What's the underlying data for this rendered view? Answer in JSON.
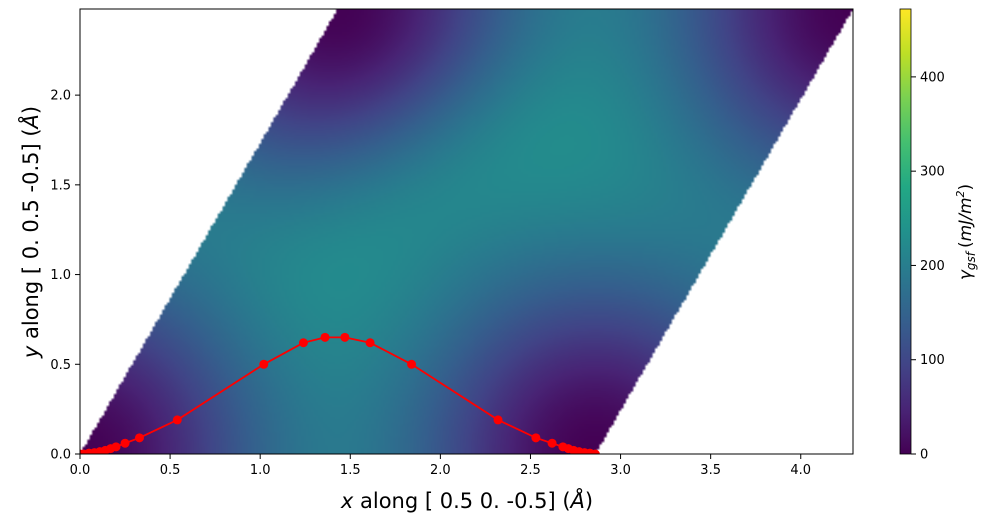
{
  "chart_data": {
    "type": "heatmap",
    "xlabel": {
      "var": "x",
      "text": " along [ 0.5  0.  -0.5] (",
      "unit": "Å",
      "close": ")"
    },
    "ylabel": {
      "var": "y",
      "text": " along [ 0.    0.5 -0.5] (",
      "unit": "Å",
      "close": ")"
    },
    "xlim": [
      0,
      4.29
    ],
    "ylim": [
      0,
      2.48
    ],
    "xticks": [
      0.0,
      0.5,
      1.0,
      1.5,
      2.0,
      2.5,
      3.0,
      3.5,
      4.0
    ],
    "yticks": [
      0.0,
      0.5,
      1.0,
      1.5,
      2.0
    ],
    "xtick_labels": [
      "0.0",
      "0.5",
      "1.0",
      "1.5",
      "2.0",
      "2.5",
      "3.0",
      "3.5",
      "4.0"
    ],
    "ytick_labels": [
      "0.0",
      "0.5",
      "1.0",
      "1.5",
      "2.0"
    ],
    "cell": {
      "a": [
        2.86,
        0.0
      ],
      "b": [
        1.43,
        2.48
      ]
    },
    "colormap": "viridis",
    "colorbar": {
      "label": {
        "symbol": "γ",
        "sub": "gsf",
        "unit": "mJ/m",
        "sup": "2"
      },
      "range": [
        0,
        472
      ],
      "ticks": [
        0,
        100,
        200,
        300,
        400
      ],
      "tick_labels": [
        "0",
        "100",
        "200",
        "300",
        "400"
      ]
    },
    "series": [
      {
        "color": "#ff0000",
        "x": [
          0.0,
          0.02,
          0.05,
          0.08,
          0.11,
          0.14,
          0.17,
          0.2,
          0.25,
          0.33,
          0.54,
          1.02,
          1.24,
          1.36,
          1.47,
          1.61,
          1.84,
          2.32,
          2.53,
          2.62,
          2.68,
          2.71,
          2.74,
          2.77,
          2.8,
          2.83,
          2.86
        ],
        "y": [
          0.0,
          0.0,
          0.005,
          0.008,
          0.013,
          0.02,
          0.03,
          0.04,
          0.06,
          0.09,
          0.19,
          0.5,
          0.62,
          0.65,
          0.65,
          0.62,
          0.5,
          0.19,
          0.09,
          0.06,
          0.04,
          0.03,
          0.02,
          0.013,
          0.008,
          0.005,
          0.0
        ]
      }
    ],
    "grid": false
  }
}
